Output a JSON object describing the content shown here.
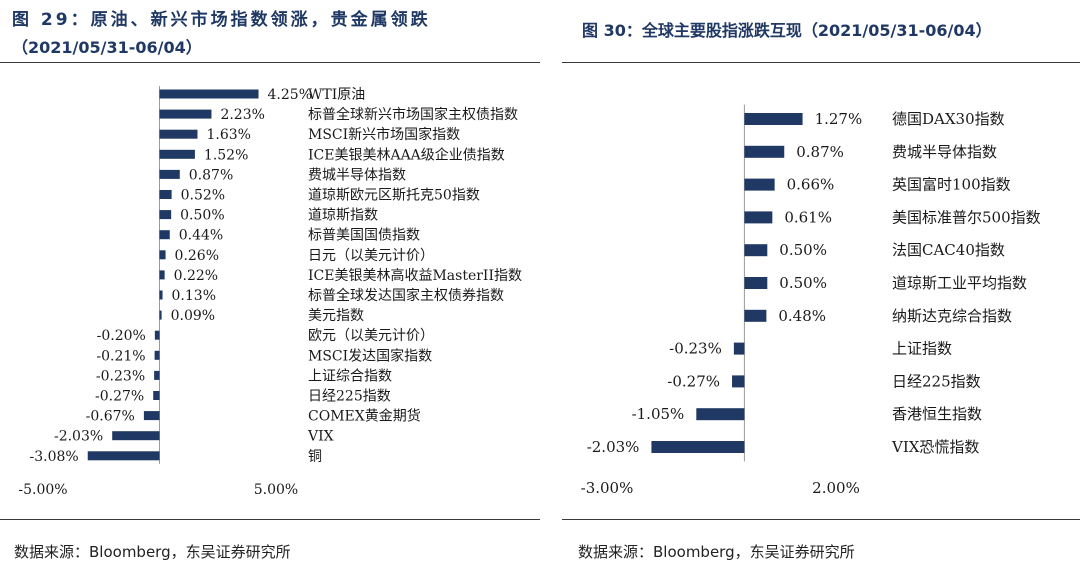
{
  "figures": [
    {
      "title_line1": "图 29：原油、新兴市场指数领涨，贵金属领跌",
      "title_line2": "（2021/05/31-06/04）",
      "source": "数据来源：Bloomberg，东吴证券研究所"
    },
    {
      "title_line1": "图 30：全球主要股指涨跌互现（2021/05/31-06/04）",
      "source": "数据来源：Bloomberg，东吴证券研究所"
    }
  ],
  "chart_data": [
    {
      "type": "bar",
      "orientation": "horizontal",
      "title": "图 29：原油、新兴市场指数领涨，贵金属领跌（2021/05/31-06/04）",
      "bar_color": "#1F3864",
      "xlim": [
        -5.0,
        5.0
      ],
      "x_tick_labels": [
        "-5.00%",
        "5.00%"
      ],
      "categories": [
        "WTI原油",
        "标普全球新兴市场国家主权债指数",
        "MSCI新兴市场国家指数",
        "ICE美银美林AAA级企业债指数",
        "费城半导体指数",
        "道琼斯欧元区斯托克50指数",
        "道琼斯指数",
        "标普美国国债指数",
        "日元（以美元计价）",
        "ICE美银美林高收益MasterII指数",
        "标普全球发达国家主权债券指数",
        "美元指数",
        "欧元（以美元计价）",
        "MSCI发达国家指数",
        "上证综合指数",
        "日经225指数",
        "COMEX黄金期货",
        "VIX",
        "铜"
      ],
      "values": [
        4.25,
        2.23,
        1.63,
        1.52,
        0.87,
        0.52,
        0.5,
        0.44,
        0.26,
        0.22,
        0.13,
        0.09,
        -0.2,
        -0.21,
        -0.23,
        -0.27,
        -0.67,
        -2.03,
        -3.08
      ],
      "value_labels": [
        "4.25%",
        "2.23%",
        "1.63%",
        "1.52%",
        "0.87%",
        "0.52%",
        "0.50%",
        "0.44%",
        "0.26%",
        "0.22%",
        "0.13%",
        "0.09%",
        "-0.20%",
        "-0.21%",
        "-0.23%",
        "-0.27%",
        "-0.67%",
        "-2.03%",
        "-3.08%"
      ]
    },
    {
      "type": "bar",
      "orientation": "horizontal",
      "title": "图 30：全球主要股指涨跌互现（2021/05/31-06/04）",
      "bar_color": "#1F3864",
      "xlim": [
        -3.0,
        2.0
      ],
      "x_tick_labels": [
        "-3.00%",
        "2.00%"
      ],
      "categories": [
        "德国DAX30指数",
        "费城半导体指数",
        "英国富时100指数",
        "美国标准普尔500指数",
        "法国CAC40指数",
        "道琼斯工业平均指数",
        "纳斯达克综合指数",
        "上证指数",
        "日经225指数",
        "香港恒生指数",
        "VIX恐慌指数"
      ],
      "values": [
        1.27,
        0.87,
        0.66,
        0.61,
        0.5,
        0.5,
        0.48,
        -0.23,
        -0.27,
        -1.05,
        -2.03
      ],
      "value_labels": [
        "1.27%",
        "0.87%",
        "0.66%",
        "0.61%",
        "0.50%",
        "0.50%",
        "0.48%",
        "-0.23%",
        "-0.27%",
        "-1.05%",
        "-2.03%"
      ]
    }
  ]
}
